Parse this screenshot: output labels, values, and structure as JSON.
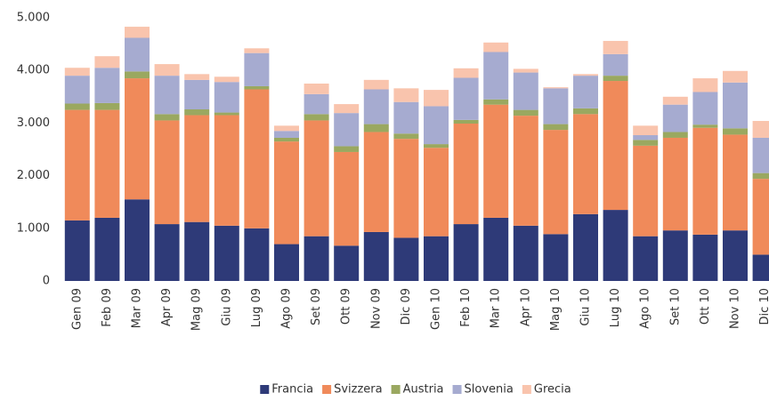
{
  "chart_data": {
    "type": "stacked_bar",
    "categories": [
      "Gen 09",
      "Feb 09",
      "Mar 09",
      "Apr 09",
      "Mag 09",
      "Giu 09",
      "Lug 09",
      "Ago 09",
      "Set 09",
      "Ott 09",
      "Nov 09",
      "Dic 09",
      "Gen 10",
      "Feb 10",
      "Mar 10",
      "Apr 10",
      "Mag 10",
      "Giu 10",
      "Lug 10",
      "Ago 10",
      "Set 10",
      "Ott 10",
      "Nov 10",
      "Dic 10"
    ],
    "series": [
      {
        "name": "Francia",
        "color": "#2e3a78",
        "values": [
          1150,
          1200,
          1550,
          1080,
          1120,
          1050,
          1000,
          700,
          850,
          670,
          930,
          820,
          850,
          1080,
          1200,
          1050,
          890,
          1270,
          1350,
          850,
          960,
          880,
          960,
          500
        ]
      },
      {
        "name": "Svizzera",
        "color": "#f08a5a",
        "values": [
          2100,
          2050,
          2300,
          1970,
          2030,
          2100,
          2640,
          1950,
          2200,
          1780,
          1900,
          1880,
          1680,
          1910,
          2150,
          2090,
          1980,
          1900,
          2450,
          1720,
          1760,
          2030,
          1820,
          1440
        ]
      },
      {
        "name": "Austria",
        "color": "#9aa860",
        "values": [
          120,
          130,
          130,
          120,
          110,
          50,
          60,
          70,
          120,
          110,
          150,
          100,
          70,
          70,
          100,
          110,
          110,
          110,
          100,
          110,
          110,
          60,
          120,
          110
        ]
      },
      {
        "name": "Slovenia",
        "color": "#a6abd0",
        "values": [
          530,
          670,
          640,
          730,
          560,
          580,
          630,
          130,
          380,
          630,
          660,
          600,
          720,
          800,
          900,
          710,
          680,
          620,
          410,
          90,
          520,
          620,
          870,
          670
        ]
      },
      {
        "name": "Grecia",
        "color": "#f9c4ad",
        "values": [
          150,
          220,
          210,
          220,
          110,
          100,
          90,
          100,
          200,
          170,
          180,
          260,
          310,
          180,
          180,
          70,
          20,
          30,
          250,
          180,
          150,
          260,
          220,
          320
        ]
      }
    ],
    "ylim": [
      0,
      5000
    ],
    "yticks": [
      0,
      {
        "value": 1000,
        "label": "1.000"
      },
      {
        "value": 2000,
        "label": "2.000"
      },
      {
        "value": 3000,
        "label": "3.000"
      },
      {
        "value": 4000,
        "label": "4.000"
      },
      {
        "value": 5000,
        "label": "5.000"
      }
    ],
    "legend": "bottom"
  }
}
